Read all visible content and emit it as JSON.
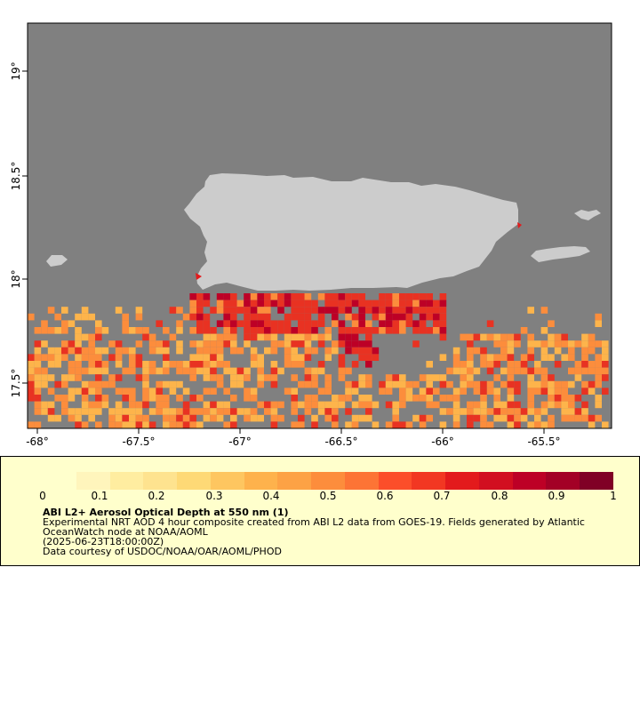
{
  "map": {
    "lon_ticks": [
      "-68°",
      "-67.5°",
      "-67°",
      "-66.5°",
      "-66°",
      "-65.5°"
    ],
    "lat_ticks": [
      "19°",
      "18.5°",
      "18°",
      "17.5°"
    ],
    "colors": {
      "ocean": "#808080",
      "land": "#cccccc",
      "low": "#fdb44b",
      "mid": "#fc8d3c",
      "high": "#e83222",
      "very_high": "#bd0026"
    }
  },
  "legend": {
    "scale": {
      "ticks": [
        "0",
        "0.1",
        "0.2",
        "0.3",
        "0.4",
        "0.5",
        "0.6",
        "0.7",
        "0.8",
        "0.9",
        "1"
      ],
      "colors": [
        "#ffffcc",
        "#fff5bc",
        "#ffeda0",
        "#fee38f",
        "#fed976",
        "#fec660",
        "#feb24c",
        "#fda245",
        "#fd8d3c",
        "#fd7435",
        "#fc4e2a",
        "#f23722",
        "#e31a1c",
        "#d20f20",
        "#bd0026",
        "#a30026",
        "#800026"
      ]
    },
    "title": "ABI L2+ Aerosol Optical Depth at 550 nm (1)",
    "line1": "Experimental NRT AOD 4 hour composite created from ABI L2 data from GOES-19. Fields generated by Atlantic",
    "line2": "OceanWatch node at NOAA/AOML",
    "line3": "(2025-06-23T18:00:00Z)",
    "line4": "Data courtesy of USDOC/NOAA/OAR/AOML/PHOD"
  }
}
